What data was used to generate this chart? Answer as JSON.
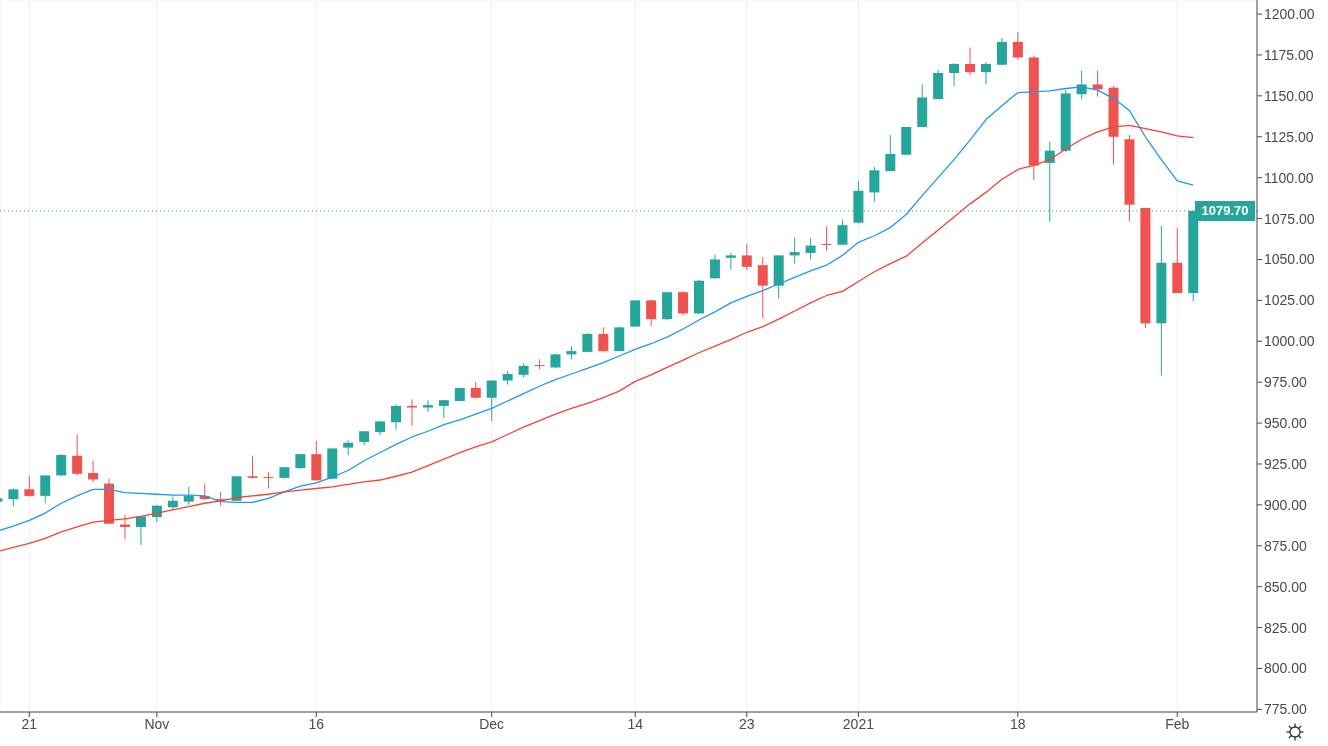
{
  "chart_data": {
    "type": "candlestick",
    "categories": [
      null,
      null,
      "21",
      null,
      null,
      null,
      null,
      null,
      null,
      null,
      "Nov",
      null,
      null,
      null,
      null,
      null,
      null,
      null,
      null,
      null,
      "16",
      null,
      null,
      null,
      null,
      null,
      null,
      null,
      null,
      null,
      null,
      "Dec",
      null,
      null,
      null,
      null,
      null,
      null,
      null,
      null,
      "14",
      null,
      null,
      null,
      null,
      null,
      null,
      "23",
      null,
      null,
      null,
      null,
      null,
      null,
      "2021",
      null,
      null,
      null,
      null,
      null,
      null,
      null,
      null,
      null,
      "18",
      null,
      null,
      null,
      null,
      null,
      null,
      null,
      null,
      null,
      "Feb",
      null
    ],
    "ohlc": [
      [
        902,
        905,
        901,
        904
      ],
      [
        903.5,
        910,
        899,
        909.5
      ],
      [
        909.5,
        918,
        905,
        905.5
      ],
      [
        905.5,
        918,
        901,
        918
      ],
      [
        918,
        931,
        918,
        930.5
      ],
      [
        930,
        943,
        918,
        919
      ],
      [
        919.5,
        927,
        914,
        915.5
      ],
      [
        913,
        916,
        888,
        888.5
      ],
      [
        888,
        894,
        879,
        886.5
      ],
      [
        886.5,
        893,
        875.5,
        893
      ],
      [
        892.5,
        900,
        889.5,
        899.5
      ],
      [
        898.5,
        905,
        897,
        902.5
      ],
      [
        902,
        911,
        900,
        905.5
      ],
      [
        905.5,
        913,
        903,
        903.5
      ],
      [
        903.5,
        908,
        899.5,
        902.5
      ],
      [
        902.5,
        917.5,
        902.5,
        917.5
      ],
      [
        917.5,
        930,
        916,
        916.5
      ],
      [
        917,
        920,
        910,
        916.5
      ],
      [
        916.5,
        923,
        916,
        923
      ],
      [
        922.5,
        931,
        922,
        931
      ],
      [
        931,
        939,
        915,
        915
      ],
      [
        916,
        934.5,
        915.5,
        934.5
      ],
      [
        935,
        939.5,
        930.5,
        938
      ],
      [
        938.5,
        945,
        936.5,
        945
      ],
      [
        944.5,
        951,
        942.5,
        951
      ],
      [
        950.5,
        961.5,
        946,
        960.5
      ],
      [
        960.5,
        964.5,
        948.5,
        959.5
      ],
      [
        959.5,
        964,
        957,
        961
      ],
      [
        960.5,
        964,
        953,
        964
      ],
      [
        963.5,
        971.5,
        963.5,
        971.5
      ],
      [
        971.5,
        975,
        965,
        965.5
      ],
      [
        965.5,
        976,
        951.5,
        976
      ],
      [
        976,
        982,
        973.5,
        980
      ],
      [
        979.5,
        986.5,
        978,
        985
      ],
      [
        985.5,
        989,
        983,
        985
      ],
      [
        984,
        992.5,
        983.5,
        992
      ],
      [
        992,
        997,
        989,
        994
      ],
      [
        993.5,
        1005,
        993.5,
        1004.5
      ],
      [
        1004.5,
        1008.5,
        993.5,
        994
      ],
      [
        994,
        1009,
        994,
        1008.5
      ],
      [
        1009,
        1025,
        1009,
        1025
      ],
      [
        1025,
        1025.5,
        1009.5,
        1013.5
      ],
      [
        1013.5,
        1030,
        1013,
        1030
      ],
      [
        1030,
        1030.5,
        1016,
        1017
      ],
      [
        1017,
        1037.5,
        1017,
        1037
      ],
      [
        1038.5,
        1053,
        1038,
        1050
      ],
      [
        1051,
        1054,
        1044,
        1052.5
      ],
      [
        1052.5,
        1059.5,
        1043.5,
        1045.5
      ],
      [
        1046.5,
        1051.5,
        1014,
        1034
      ],
      [
        1034,
        1052.5,
        1026,
        1052.5
      ],
      [
        1052.5,
        1063.5,
        1047.5,
        1054.5
      ],
      [
        1054,
        1063,
        1050,
        1058.5
      ],
      [
        1059.5,
        1070,
        1055.5,
        1059
      ],
      [
        1059,
        1074.5,
        1059,
        1071
      ],
      [
        1072.5,
        1098,
        1072,
        1092
      ],
      [
        1091,
        1106.5,
        1085.5,
        1104.5
      ],
      [
        1104,
        1126,
        1104,
        1114.5
      ],
      [
        1114,
        1131,
        1114,
        1131
      ],
      [
        1131,
        1157,
        1131,
        1149
      ],
      [
        1148,
        1166,
        1148,
        1164
      ],
      [
        1164,
        1170,
        1156,
        1169.5
      ],
      [
        1169.5,
        1179.5,
        1162.5,
        1164.5
      ],
      [
        1164.5,
        1170.5,
        1157,
        1169.5
      ],
      [
        1169,
        1185.5,
        1169,
        1183
      ],
      [
        1183,
        1189,
        1172,
        1173.5
      ],
      [
        1173.5,
        1174.5,
        1098.5,
        1107.5
      ],
      [
        1109,
        1122,
        1073,
        1116.5
      ],
      [
        1116.5,
        1153.5,
        1115.5,
        1151.5
      ],
      [
        1151,
        1165.5,
        1148,
        1157
      ],
      [
        1157,
        1165.5,
        1149.5,
        1154
      ],
      [
        1155,
        1156,
        1108,
        1125
      ],
      [
        1123.5,
        1126,
        1073.5,
        1083.5
      ],
      [
        1081.5,
        1081.5,
        1008,
        1011
      ],
      [
        1011,
        1070.5,
        979,
        1048
      ],
      [
        1048,
        1069,
        1029.5,
        1029.5
      ],
      [
        1029.5,
        1079.7,
        1024.5,
        1079.7
      ]
    ],
    "colors": [
      "#26a69a",
      "#26a69a",
      "#ef5350",
      "#26a69a",
      "#26a69a",
      "#ef5350",
      "#ef5350",
      "#ef5350",
      "#ef5350",
      "#26a69a",
      "#26a69a",
      "#26a69a",
      "#26a69a",
      "#ef5350",
      "#ef5350",
      "#26a69a",
      "#ef5350",
      "#ef5350",
      "#26a69a",
      "#26a69a",
      "#ef5350",
      "#26a69a",
      "#26a69a",
      "#26a69a",
      "#26a69a",
      "#26a69a",
      "#ef5350",
      "#26a69a",
      "#26a69a",
      "#26a69a",
      "#ef5350",
      "#26a69a",
      "#26a69a",
      "#26a69a",
      "#ef5350",
      "#26a69a",
      "#26a69a",
      "#26a69a",
      "#ef5350",
      "#26a69a",
      "#26a69a",
      "#ef5350",
      "#26a69a",
      "#ef5350",
      "#26a69a",
      "#26a69a",
      "#26a69a",
      "#ef5350",
      "#ef5350",
      "#26a69a",
      "#26a69a",
      "#26a69a",
      "#ef5350",
      "#26a69a",
      "#26a69a",
      "#26a69a",
      "#26a69a",
      "#26a69a",
      "#26a69a",
      "#26a69a",
      "#26a69a",
      "#ef5350",
      "#26a69a",
      "#26a69a",
      "#ef5350",
      "#ef5350",
      "#26a69a",
      "#26a69a",
      "#26a69a",
      "#ef5350",
      "#ef5350",
      "#ef5350",
      "#ef5350",
      "#26a69a",
      "#ef5350",
      "#26a69a"
    ],
    "series": [
      {
        "type": "line",
        "color": "#2196f3",
        "values": [
          884,
          887,
          890.5,
          895,
          901,
          905.5,
          909.5,
          909.5,
          907.5,
          907,
          906.5,
          906,
          906,
          905.5,
          902,
          901.5,
          901.5,
          904,
          908,
          911.5,
          913.5,
          917,
          921,
          927,
          932,
          937,
          941.5,
          945,
          949,
          952,
          955.5,
          959,
          963.5,
          968,
          972.5,
          976.5,
          980,
          983.5,
          987,
          991,
          995,
          998.5,
          1002.5,
          1007.5,
          1013,
          1018,
          1023.5,
          1027.5,
          1031,
          1035,
          1039,
          1043,
          1046.5,
          1052.5,
          1060.5,
          1064.5,
          1069.5,
          1077.5,
          1089,
          1100,
          1111,
          1123,
          1135.5,
          1144,
          1152,
          1152.5,
          1153,
          1154.5,
          1155.5,
          1153.5,
          1148.5,
          1141,
          1125,
          1111,
          1098,
          1095.5
        ]
      },
      {
        "type": "line",
        "color": "#f44336",
        "values": [
          871.5,
          874,
          876.5,
          879.5,
          883.5,
          886.5,
          889.5,
          890.5,
          891.5,
          893,
          895,
          897,
          899,
          901,
          902.5,
          904.5,
          905.5,
          906.5,
          908,
          909,
          910,
          911,
          912.5,
          914,
          915.2,
          917.5,
          920,
          924,
          928,
          932,
          935.5,
          938.5,
          943,
          947.5,
          951.5,
          955.5,
          959,
          962,
          965.5,
          969.5,
          975.5,
          979.5,
          984,
          988.5,
          993,
          997,
          1001,
          1005.5,
          1009,
          1013.5,
          1018.5,
          1023.5,
          1028,
          1030.5,
          1036.5,
          1042.5,
          1047.5,
          1052,
          1060,
          1068,
          1076,
          1084,
          1091,
          1099,
          1105,
          1107.5,
          1111,
          1117.5,
          1123.5,
          1128,
          1131,
          1132,
          1130,
          1128,
          1125.5,
          1124.5
        ]
      }
    ],
    "ylim": [
      773.4,
      1208.6
    ],
    "yticks": [
      {
        "value": 775,
        "label": "775.00"
      },
      {
        "value": 800,
        "label": "800.00"
      },
      {
        "value": 825,
        "label": "825.00"
      },
      {
        "value": 850,
        "label": "850.00"
      },
      {
        "value": 875,
        "label": "875.00"
      },
      {
        "value": 900,
        "label": "900.00"
      },
      {
        "value": 925,
        "label": "925.00"
      },
      {
        "value": 950,
        "label": "950.00"
      },
      {
        "value": 975,
        "label": "975.00"
      },
      {
        "value": 1000,
        "label": "1000.00"
      },
      {
        "value": 1025,
        "label": "1025.00"
      },
      {
        "value": 1050,
        "label": "1050.00"
      },
      {
        "value": 1075,
        "label": "1075.00"
      },
      {
        "value": 1100,
        "label": "1100.00"
      },
      {
        "value": 1125,
        "label": "1125.00"
      },
      {
        "value": 1150,
        "label": "1150.00"
      },
      {
        "value": 1175,
        "label": "1175.00"
      },
      {
        "value": 1200,
        "label": "1200.00"
      }
    ],
    "grid": true,
    "ref_lines": [
      {
        "axis": "y",
        "value": 1079.7,
        "label": "1079.70",
        "color": "#26a69a",
        "line_style": "dotted"
      }
    ]
  }
}
